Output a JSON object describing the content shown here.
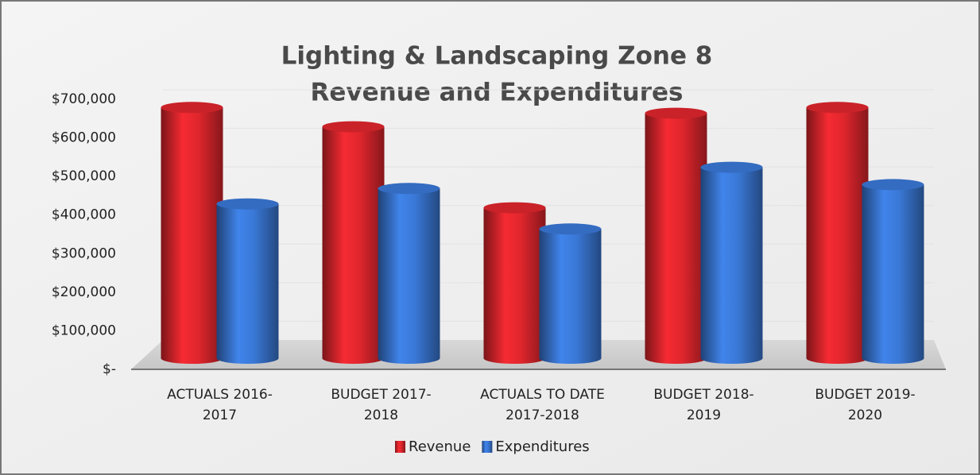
{
  "chart_data": {
    "type": "bar",
    "title": "Lighting & Landscaping Zone 8",
    "subtitle": "Revenue and Expenditures",
    "categories": [
      [
        "ACTUALS 2016-",
        "2017"
      ],
      [
        "BUDGET 2017-",
        "2018"
      ],
      [
        "ACTUALS TO DATE",
        "2017-2018"
      ],
      [
        "BUDGET 2018-",
        "2019"
      ],
      [
        "BUDGET 2019-",
        "2020"
      ]
    ],
    "series": [
      {
        "name": "Revenue",
        "color": "#e0262d",
        "values": [
          650000,
          600000,
          390000,
          635000,
          650000
        ]
      },
      {
        "name": "Expenditures",
        "color": "#3a78d6",
        "values": [
          400000,
          440000,
          335000,
          495000,
          450000
        ]
      }
    ],
    "ylim": [
      0,
      700000
    ],
    "yticks": [
      {
        "value": 0,
        "label": "$-"
      },
      {
        "value": 100000,
        "label": "$100,000"
      },
      {
        "value": 200000,
        "label": "$200,000"
      },
      {
        "value": 300000,
        "label": "$300,000"
      },
      {
        "value": 400000,
        "label": "$400,000"
      },
      {
        "value": 500000,
        "label": "$500,000"
      },
      {
        "value": 600000,
        "label": "$600,000"
      },
      {
        "value": 700000,
        "label": "$700,000"
      }
    ],
    "grid": true,
    "legend": "bottom"
  }
}
